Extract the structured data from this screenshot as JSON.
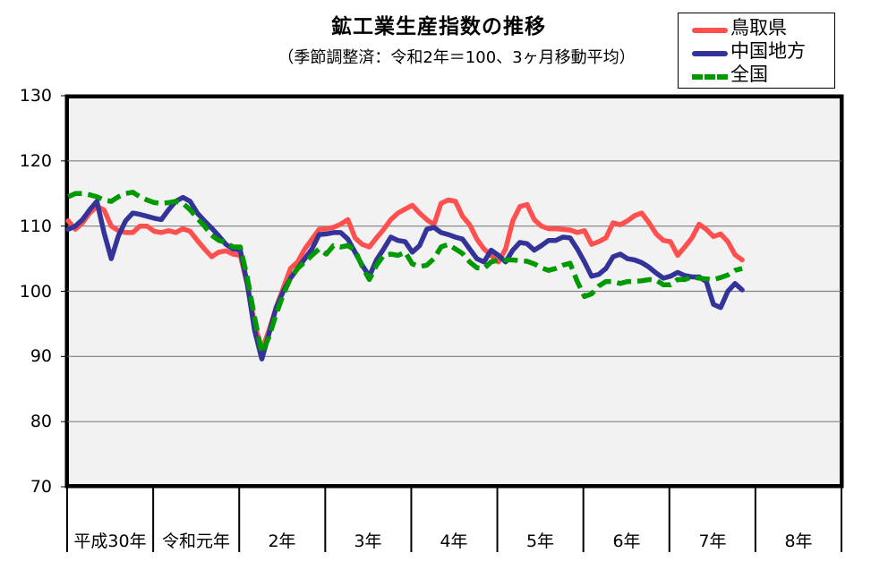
{
  "chart_data": {
    "type": "line",
    "title": "鉱工業生産指数の推移",
    "subtitle": "（季節調整済：令和2年＝100、3ヶ月移動平均）",
    "xlabel": "",
    "ylabel": "",
    "ylim": [
      70,
      130
    ],
    "yticks": [
      70,
      80,
      90,
      100,
      110,
      120,
      130
    ],
    "grid": true,
    "legend_position": "top-right",
    "categories": [
      "平成30年",
      "令和元年",
      "2年",
      "3年",
      "4年",
      "5年",
      "6年",
      "7年",
      "8年"
    ],
    "x_unit": "month",
    "series": [
      {
        "name": "鳥取県",
        "color": "#ff5050",
        "style": "solid",
        "values": [
          110.8,
          109.5,
          110.5,
          112.0,
          113.0,
          112.5,
          110.0,
          109.3,
          109.0,
          109.0,
          110.0,
          110.0,
          109.2,
          109.0,
          109.3,
          109.0,
          109.6,
          109.2,
          107.8,
          106.5,
          105.3,
          106.0,
          106.2,
          105.7,
          105.5,
          101.0,
          95.0,
          91.0,
          94.0,
          97.5,
          100.5,
          103.5,
          104.5,
          106.5,
          108.0,
          109.5,
          109.6,
          109.8,
          110.3,
          111.0,
          108.2,
          107.2,
          106.8,
          108.2,
          109.5,
          111.0,
          112.0,
          112.6,
          113.2,
          112.0,
          111.0,
          110.2,
          113.5,
          114.0,
          113.8,
          111.5,
          110.2,
          108.0,
          106.5,
          105.5,
          104.5,
          106.5,
          110.8,
          113.0,
          113.3,
          111.0,
          110.0,
          109.6,
          109.6,
          109.5,
          109.4,
          109.0,
          109.3,
          107.2,
          107.6,
          108.2,
          110.5,
          110.2,
          110.8,
          111.6,
          112.0,
          110.5,
          108.8,
          107.8,
          107.6,
          105.5,
          106.8,
          108.2,
          110.3,
          109.5,
          108.4,
          108.8,
          107.6,
          105.6,
          104.8
        ]
      },
      {
        "name": "中国地方",
        "color": "#333399",
        "style": "solid",
        "values": [
          109.5,
          110.0,
          111.0,
          112.5,
          113.8,
          109.0,
          105.0,
          108.5,
          110.8,
          112.0,
          111.8,
          111.5,
          111.2,
          111.0,
          112.5,
          113.8,
          114.4,
          113.8,
          112.0,
          110.8,
          109.7,
          108.5,
          107.2,
          106.5,
          106.3,
          101.0,
          94.0,
          89.6,
          93.5,
          97.5,
          100.0,
          102.0,
          103.5,
          105.0,
          106.5,
          108.7,
          108.8,
          109.0,
          109.0,
          108.0,
          106.0,
          104.0,
          102.3,
          104.8,
          106.5,
          108.3,
          107.8,
          107.6,
          106.0,
          107.0,
          109.5,
          109.8,
          109.0,
          108.7,
          108.3,
          108.0,
          106.5,
          105.0,
          104.5,
          106.3,
          105.5,
          104.5,
          106.3,
          107.5,
          107.3,
          106.3,
          107.0,
          107.8,
          107.8,
          108.3,
          108.2,
          106.5,
          104.5,
          102.3,
          102.6,
          103.5,
          105.3,
          105.7,
          105.0,
          104.8,
          104.4,
          103.7,
          102.8,
          102.0,
          102.3,
          102.9,
          102.4,
          102.2,
          102.2,
          101.5,
          98.0,
          97.5,
          100.0,
          101.2,
          100.2
        ]
      },
      {
        "name": "全国",
        "color": "#009900",
        "style": "dashed",
        "values": [
          114.5,
          115.0,
          115.0,
          114.8,
          114.5,
          114.0,
          113.8,
          114.5,
          115.0,
          115.2,
          114.5,
          114.0,
          113.6,
          113.5,
          113.6,
          113.8,
          113.5,
          112.5,
          111.2,
          110.0,
          108.6,
          107.8,
          107.5,
          106.8,
          106.8,
          102.0,
          96.0,
          90.5,
          93.0,
          96.5,
          99.5,
          102.0,
          103.5,
          104.5,
          105.5,
          106.5,
          105.7,
          107.0,
          106.8,
          107.0,
          106.3,
          103.8,
          101.8,
          104.0,
          105.5,
          105.7,
          105.5,
          106.0,
          104.2,
          103.8,
          104.0,
          105.0,
          106.8,
          107.2,
          106.5,
          105.8,
          104.5,
          103.6,
          103.5,
          104.5,
          104.8,
          104.8,
          104.8,
          104.7,
          104.6,
          104.2,
          103.6,
          103.2,
          103.5,
          104.0,
          104.3,
          101.5,
          99.2,
          99.6,
          100.8,
          101.5,
          101.5,
          101.2,
          101.5,
          101.5,
          101.6,
          101.8,
          101.7,
          101.0,
          101.0,
          101.8,
          101.8,
          102.2,
          102.0,
          101.9,
          101.8,
          102.1,
          102.5,
          103.2,
          103.5
        ]
      }
    ]
  },
  "header": {
    "title": "鉱工業生産指数の推移",
    "subtitle": "（季節調整済：令和2年＝100、3ヶ月移動平均）"
  },
  "legend": {
    "items": [
      {
        "label": "鳥取県",
        "color": "#ff5050"
      },
      {
        "label": "中国地方",
        "color": "#333399"
      },
      {
        "label": "全国",
        "color": "#009900"
      }
    ]
  },
  "axis": {
    "y_ticks": [
      "130",
      "120",
      "110",
      "100",
      "90",
      "80",
      "70"
    ],
    "x_labels": [
      "平成30年",
      "令和元年",
      "2年",
      "3年",
      "4年",
      "5年",
      "6年",
      "7年",
      "8年"
    ]
  }
}
